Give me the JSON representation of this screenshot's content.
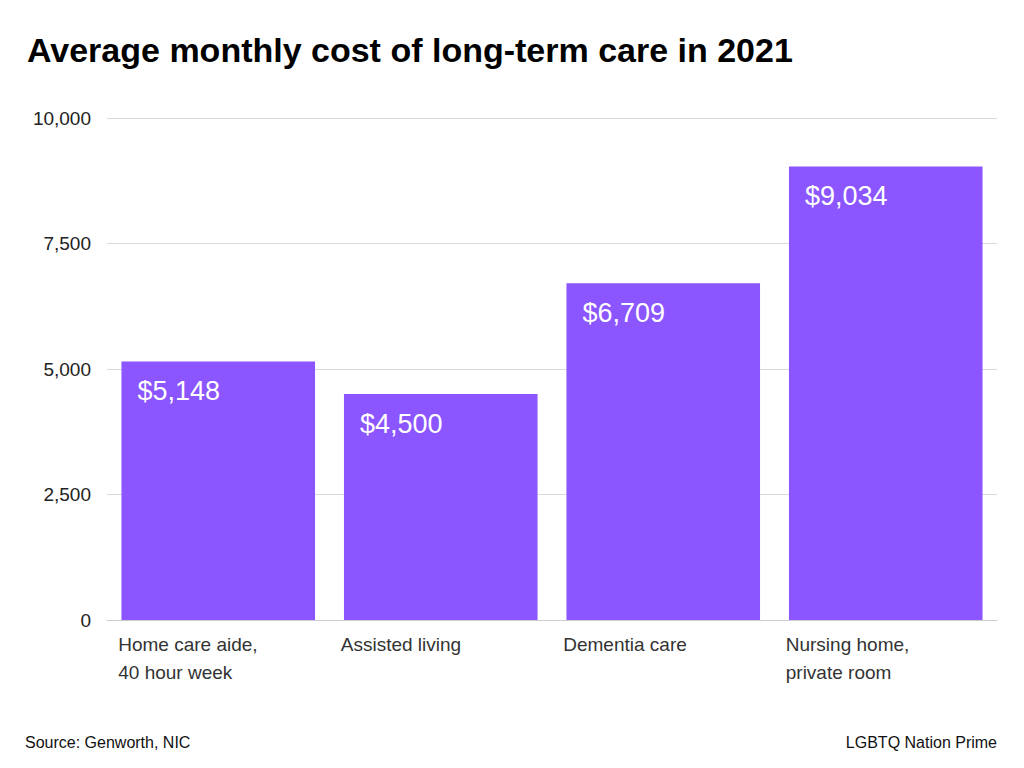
{
  "chart_data": {
    "type": "bar",
    "title": "Average monthly cost of long-term care in 2021",
    "categories": [
      "Home care aide,\n40 hour week",
      "Assisted living",
      "Dementia care",
      "Nursing home,\nprivate room"
    ],
    "values": [
      5148,
      4500,
      6709,
      9034
    ],
    "value_labels": [
      "$5,148",
      "$4,500",
      "$6,709",
      "$9,034"
    ],
    "color": "#8b55ff",
    "ylim": [
      0,
      10000
    ],
    "yticks": [
      0,
      {
        "value": 2500,
        "label": "2,500"
      },
      {
        "value": 5000,
        "label": "5,000"
      },
      {
        "value": 7500,
        "label": "7,500"
      },
      {
        "value": 10000,
        "label": "10,000"
      }
    ],
    "grid": true,
    "data_labels": true,
    "annotations": [
      "Source: Genworth, NIC",
      "LGBTQ Nation Prime"
    ]
  }
}
